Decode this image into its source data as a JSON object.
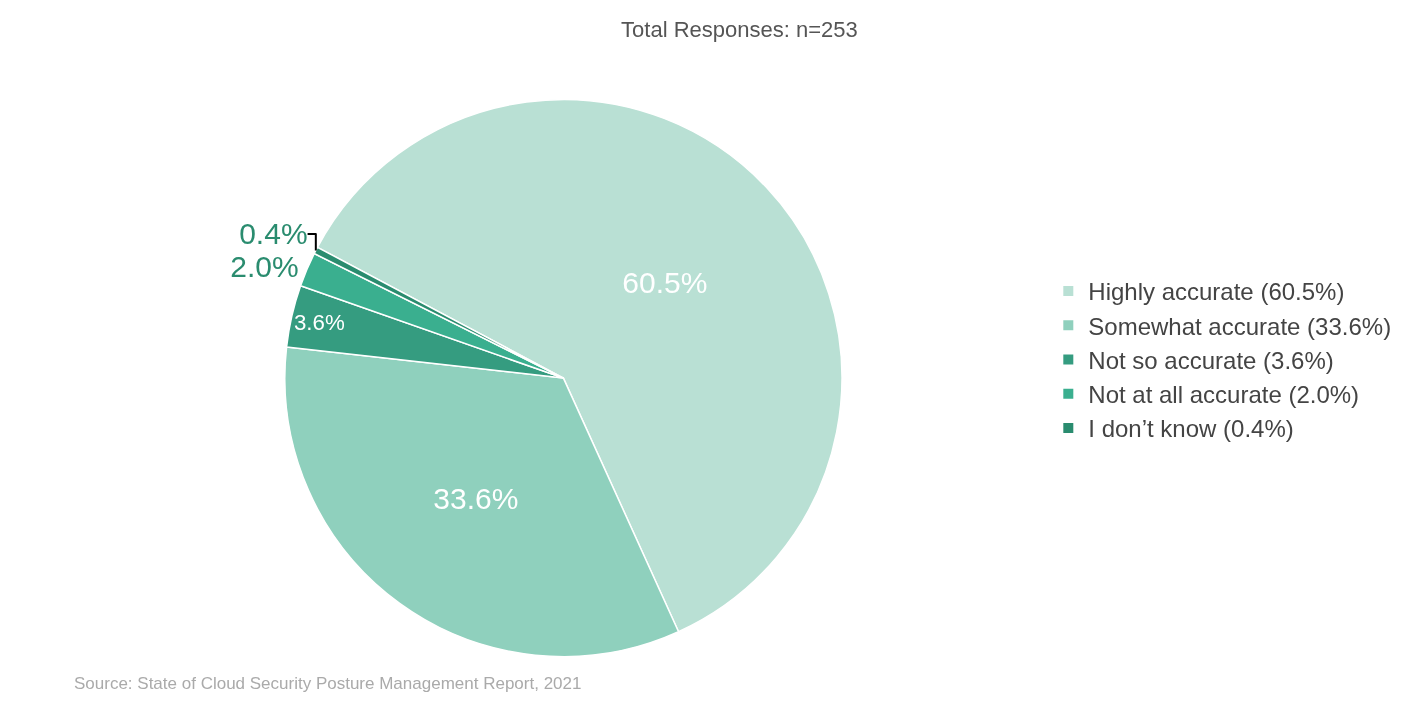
{
  "chart_data": {
    "type": "pie",
    "title": "Total Responses: n=253",
    "categories": [
      "Highly accurate (60.5%)",
      "Somewhat accurate (33.6%)",
      "Not so accurate (3.6%)",
      "Not at all accurate (2.0%)",
      "I don’t know (0.4%)"
    ],
    "values": [
      60.5,
      33.6,
      3.6,
      2.0,
      0.4
    ],
    "value_labels": [
      "60.5%",
      "33.6%",
      "3.6%",
      "2.0%",
      "0.4%"
    ],
    "colors": [
      "#b9e0d4",
      "#8fd0bd",
      "#359c80",
      "#3aaf8f",
      "#2a8c6f"
    ],
    "legend": "right",
    "annotations": [
      "Source: State of Cloud Security Posture Management Report, 2021"
    ]
  }
}
